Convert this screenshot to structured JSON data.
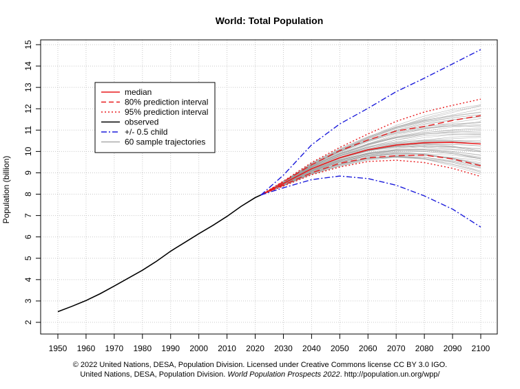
{
  "chart_data": {
    "type": "line",
    "title": "World: Total Population",
    "xlabel": "",
    "ylabel": "Population (billion)",
    "xlim": [
      1950,
      2100
    ],
    "ylim": [
      2,
      15
    ],
    "x_ticks": [
      1950,
      1960,
      1970,
      1980,
      1990,
      2000,
      2010,
      2020,
      2030,
      2040,
      2050,
      2060,
      2070,
      2080,
      2090,
      2100
    ],
    "y_ticks": [
      2,
      3,
      4,
      5,
      6,
      7,
      8,
      9,
      10,
      11,
      12,
      13,
      14,
      15
    ],
    "grid": true,
    "legend_position": "top-left",
    "legend": [
      {
        "label": "median",
        "color": "#e8191b",
        "style": "solid"
      },
      {
        "label": "80% prediction interval",
        "color": "#e8191b",
        "style": "dashed"
      },
      {
        "label": "95% prediction interval",
        "color": "#e8191b",
        "style": "dotted"
      },
      {
        "label": "observed",
        "color": "#000000",
        "style": "solid"
      },
      {
        "label": "+/- 0.5 child",
        "color": "#1a1adb",
        "style": "dashdot"
      },
      {
        "label": "60 sample trajectories",
        "color": "#aaaaaa",
        "style": "solid"
      }
    ],
    "series": [
      {
        "name": "observed",
        "x": [
          1950,
          1955,
          1960,
          1965,
          1970,
          1975,
          1980,
          1985,
          1990,
          1995,
          2000,
          2005,
          2010,
          2015,
          2020,
          2022
        ],
        "values": [
          2.5,
          2.75,
          3.02,
          3.34,
          3.7,
          4.07,
          4.44,
          4.86,
          5.33,
          5.74,
          6.15,
          6.54,
          6.96,
          7.43,
          7.84,
          7.96
        ]
      },
      {
        "name": "median",
        "x": [
          2022,
          2030,
          2040,
          2050,
          2060,
          2070,
          2080,
          2090,
          2100
        ],
        "values": [
          7.96,
          8.5,
          9.19,
          9.71,
          10.08,
          10.3,
          10.41,
          10.43,
          10.35
        ]
      },
      {
        "name": "80% prediction interval",
        "x": [
          2022,
          2030,
          2040,
          2050,
          2060,
          2070,
          2080,
          2090,
          2100
        ],
        "values_upper": [
          7.96,
          8.58,
          9.38,
          10.04,
          10.54,
          10.96,
          11.17,
          11.45,
          11.68
        ],
        "values_lower": [
          7.96,
          8.43,
          9.0,
          9.45,
          9.7,
          9.8,
          9.83,
          9.65,
          9.33
        ]
      },
      {
        "name": "95% prediction interval",
        "x": [
          2022,
          2030,
          2040,
          2050,
          2060,
          2070,
          2080,
          2090,
          2100
        ],
        "values_upper": [
          7.96,
          8.61,
          9.48,
          10.19,
          10.82,
          11.41,
          11.85,
          12.16,
          12.45
        ],
        "values_lower": [
          7.96,
          8.38,
          8.91,
          9.27,
          9.53,
          9.59,
          9.48,
          9.21,
          8.83
        ]
      },
      {
        "name": "+/- 0.5 child",
        "x": [
          2022,
          2030,
          2040,
          2050,
          2060,
          2070,
          2080,
          2090,
          2100
        ],
        "values_upper": [
          7.96,
          8.89,
          10.31,
          11.29,
          12.02,
          12.8,
          13.43,
          14.1,
          14.77
        ],
        "values_lower": [
          7.96,
          8.3,
          8.68,
          8.85,
          8.73,
          8.42,
          7.92,
          7.3,
          6.46
        ]
      }
    ]
  },
  "footer": {
    "line1": "© 2022 United Nations, DESA, Population Division. Licensed under Creative Commons license CC BY 3.0 IGO.",
    "line2_prefix": "United Nations, DESA, Population Division. ",
    "line2_italic": "World Population Prospects 2022",
    "line2_suffix": ". http://population.un.org/wpp/"
  }
}
